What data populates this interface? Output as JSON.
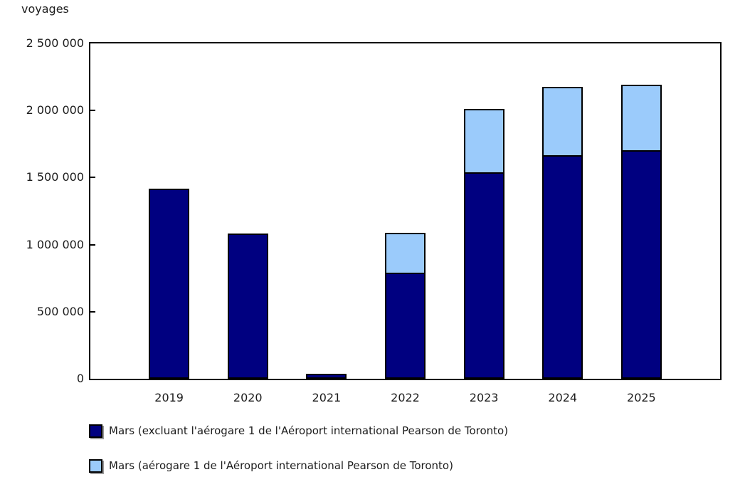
{
  "chart_data": {
    "type": "bar",
    "stacked": true,
    "title": "",
    "ylabel": "voyages",
    "xlabel": "",
    "categories": [
      "2019",
      "2020",
      "2021",
      "2022",
      "2023",
      "2024",
      "2025"
    ],
    "series": [
      {
        "key": "mars-excluant-aerogare-1",
        "name": "Mars (excluant l'aérogare 1 de l'Aéroport international Pearson de Toronto)",
        "color": "#000080",
        "values": [
          1415000,
          1085000,
          37000,
          790000,
          1540000,
          1665000,
          1705000
        ]
      },
      {
        "key": "mars-aerogare-1",
        "name": "Mars (aérogare 1 de l'Aéroport international Pearson de Toronto)",
        "color": "#9bcbfb",
        "values": [
          0,
          0,
          0,
          295000,
          470000,
          510000,
          490000
        ]
      }
    ],
    "ylim": [
      0,
      2500000
    ],
    "ytick_step": 500000,
    "ytick_labels": [
      "0",
      "500 000",
      "1 000 000",
      "1 500 000",
      "2 000 000",
      "2 500 000"
    ],
    "grid": false,
    "legend_position": "bottom",
    "bar_border_color": "#000000",
    "background_color": "#ffffff"
  }
}
